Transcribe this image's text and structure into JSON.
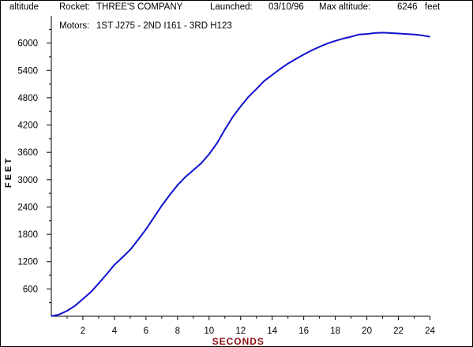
{
  "header": {
    "graph_label": "altitude",
    "rocket_label": "Rocket:",
    "rocket_name": "THREE'S COMPANY",
    "launched_label": "Launched:",
    "launched_date": "03/10/96",
    "max_alt_label": "Max altitude:",
    "max_alt_value": "6246",
    "max_alt_unit": "feet",
    "motors_label": "Motors:",
    "motors_value": "1ST J275 - 2ND I161 - 3RD H123"
  },
  "colors": {
    "line": "#1010d0",
    "axis": "#000000",
    "xlabel": "#8b1010",
    "ylabel": "#000000"
  },
  "chart_data": {
    "type": "line",
    "title": "",
    "xlabel": "SECONDS",
    "ylabel": "FEET",
    "xlim": [
      0,
      24
    ],
    "ylim": [
      0,
      6600
    ],
    "xticks": [
      2,
      4,
      6,
      8,
      10,
      12,
      14,
      16,
      18,
      20,
      22,
      24
    ],
    "yticks": [
      600,
      1200,
      1800,
      2400,
      3000,
      3600,
      4200,
      4800,
      5400,
      6000
    ],
    "grid": false,
    "legend": "none",
    "series": [
      {
        "x": [
          0,
          0.5,
          1,
          1.5,
          2,
          2.5,
          3,
          3.5,
          4,
          4.5,
          5,
          5.5,
          6,
          6.5,
          7,
          7.5,
          8,
          8.5,
          9,
          9.5,
          10,
          10.5,
          11,
          11.5,
          12,
          12.5,
          13,
          13.5,
          14,
          14.5,
          15,
          15.5,
          16,
          16.5,
          17,
          17.5,
          18,
          18.5,
          19,
          19.5,
          20,
          20.5,
          21,
          21.5,
          22,
          22.5,
          23,
          23.5,
          24
        ],
        "y": [
          0,
          40,
          120,
          230,
          380,
          530,
          720,
          920,
          1130,
          1290,
          1460,
          1680,
          1910,
          2170,
          2430,
          2660,
          2880,
          3060,
          3210,
          3360,
          3560,
          3800,
          4100,
          4380,
          4610,
          4820,
          4990,
          5170,
          5300,
          5430,
          5550,
          5650,
          5750,
          5840,
          5920,
          5990,
          6050,
          6100,
          6140,
          6190,
          6200,
          6220,
          6230,
          6220,
          6210,
          6200,
          6190,
          6170,
          6140
        ]
      }
    ]
  }
}
